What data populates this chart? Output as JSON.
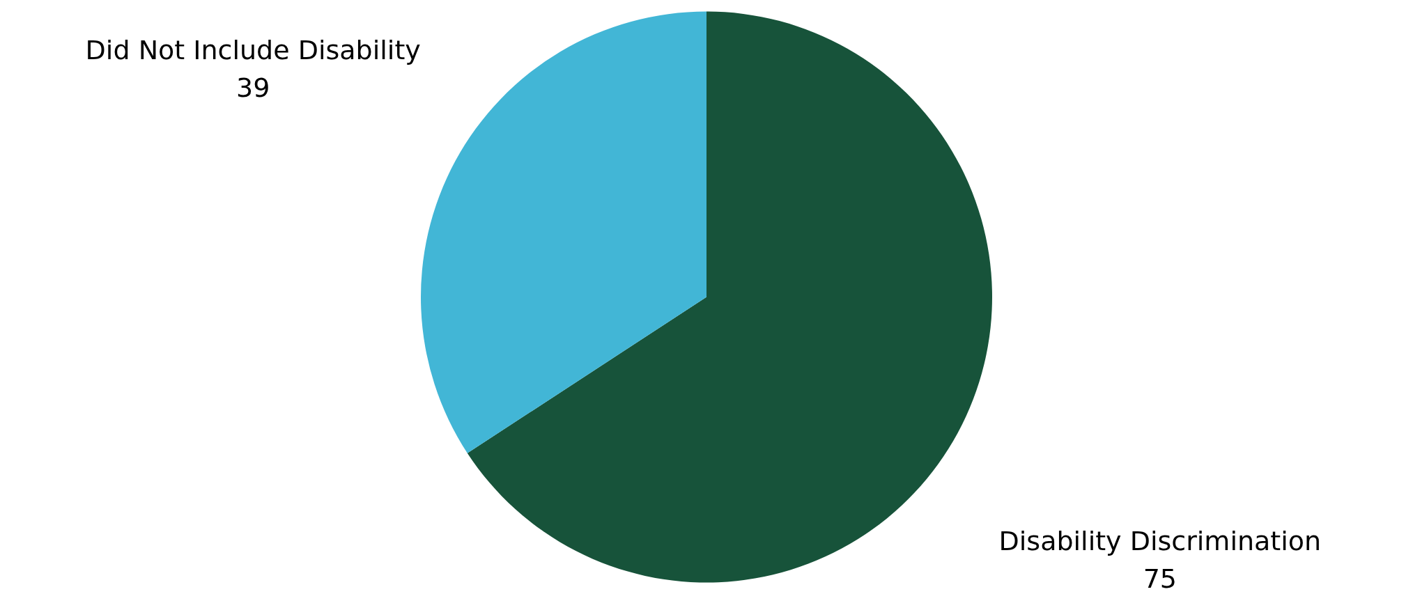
{
  "chart_data": {
    "type": "pie",
    "categories": [
      "Disability Discrimination",
      "Did Not Include Disability"
    ],
    "values": [
      75,
      39
    ],
    "colors": [
      "#17533a",
      "#42b6d6"
    ],
    "data_labels": true
  }
}
